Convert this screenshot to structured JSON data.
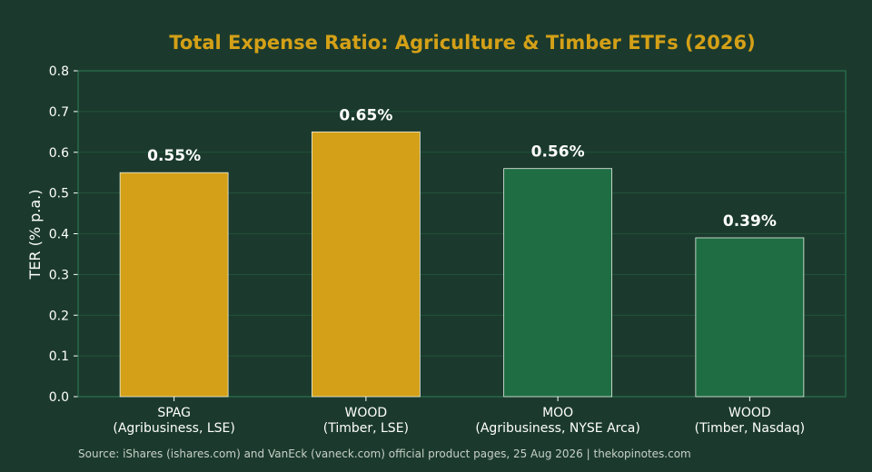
{
  "chart_data": {
    "type": "bar",
    "title": "Total Expense Ratio: Agriculture & Timber ETFs (2026)",
    "xlabel": "",
    "ylabel": "TER (% p.a.)",
    "ylim": [
      0,
      0.8
    ],
    "yticks": [
      "0.0",
      "0.1",
      "0.2",
      "0.3",
      "0.4",
      "0.5",
      "0.6",
      "0.7",
      "0.8"
    ],
    "grid": true,
    "categories": [
      [
        "SPAG",
        "(Agribusiness, LSE)"
      ],
      [
        "WOOD",
        "(Timber, LSE)"
      ],
      [
        "MOO",
        "(Agribusiness, NYSE Arca)"
      ],
      [
        "WOOD",
        "(Timber, Nasdaq)"
      ]
    ],
    "values": [
      0.55,
      0.65,
      0.56,
      0.39
    ],
    "data_labels": [
      "0.55%",
      "0.65%",
      "0.56%",
      "0.39%"
    ],
    "bar_colors": [
      "#d4a017",
      "#d4a017",
      "#1f6e43",
      "#1f6e43"
    ],
    "source": "Source: iShares (ishares.com) and VanEck (vaneck.com) official product pages, 25 Aug 2026 | thekopinotes.com"
  },
  "colors": {
    "background": "#1b3a2d",
    "title": "#d4a017",
    "frame": "#2e7d55",
    "grid": "#245a3e",
    "bar_edge": "#e8f0e8"
  }
}
